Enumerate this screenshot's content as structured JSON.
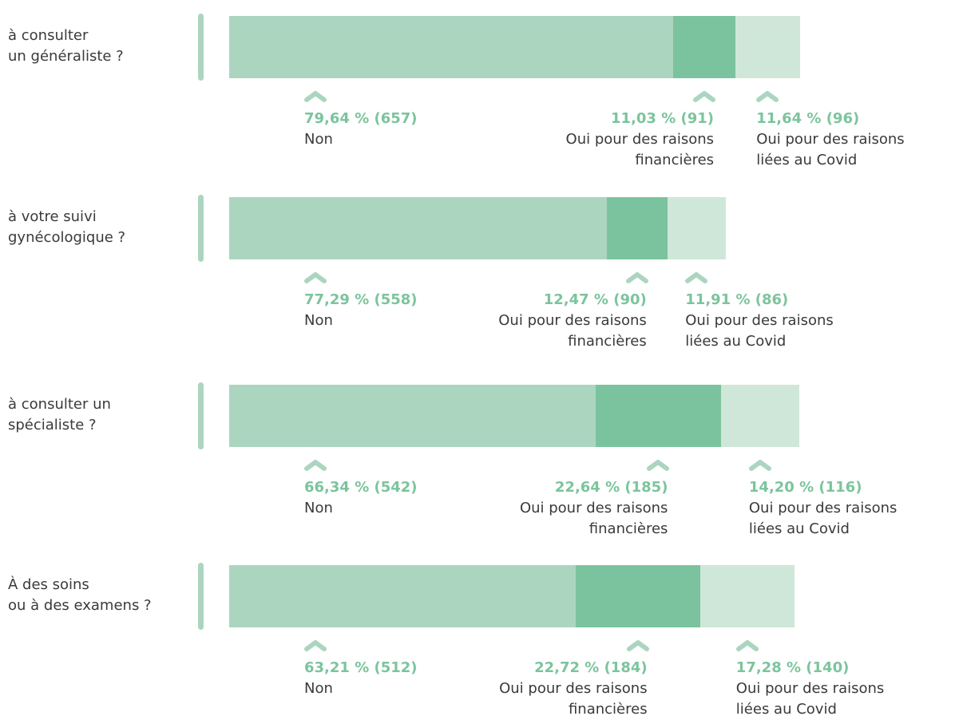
{
  "chart_data": {
    "type": "stacked-bar-horizontal",
    "categories": [
      "à consulter\nun généraliste ?",
      "à votre suivi\ngynécologique ?",
      "à consulter un\nspécialiste ?",
      "À des soins\nou à des examens ?"
    ],
    "series": [
      {
        "name": "Non",
        "color": "#acd5c0",
        "values": [
          657,
          558,
          542,
          512
        ],
        "value_labels": [
          "79,64 % (657)",
          "77,29 % (558)",
          "66,34 % (542)",
          "63,21 % (512)"
        ]
      },
      {
        "name": "Oui pour des raisons financières",
        "color": "#7bc39e",
        "values": [
          91,
          90,
          185,
          184
        ],
        "value_labels": [
          "11,03 % (91)",
          "12,47 % (90)",
          "22,64 % (185)",
          "22,72 % (184)"
        ]
      },
      {
        "name": "Oui pour des raisons liées au Covid",
        "color": "#cfe7d8",
        "values": [
          96,
          86,
          116,
          140
        ],
        "value_labels": [
          "11,64 % (96)",
          "11,91 % (86)",
          "14,20 % (116)",
          "17,28 % (140)"
        ]
      }
    ]
  }
}
